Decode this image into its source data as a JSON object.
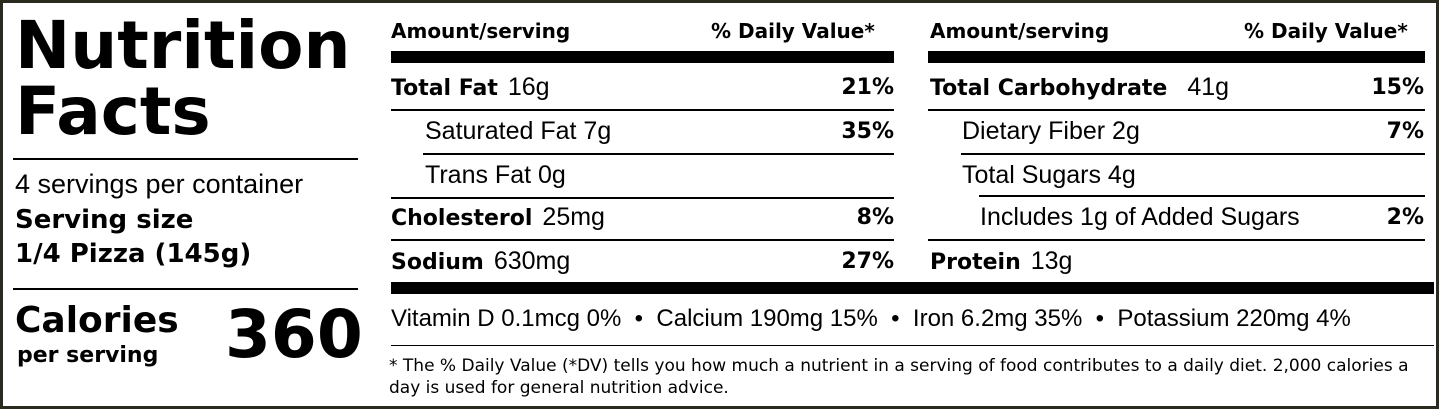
{
  "title_line1": "Nutrition",
  "title_line2": "Facts",
  "servings_per_container": "4 servings per container",
  "serving_size_label": "Serving size",
  "serving_size_value": "1/4 Pizza (145g)",
  "calories_label": "Calories",
  "calories_sub": "per serving",
  "calories_value": "360",
  "left_header": {
    "amount": "Amount/serving",
    "dv": "% Daily Value*"
  },
  "right_header": {
    "amount": "Amount/serving",
    "dv": "% Daily Value*"
  },
  "left_rows": [
    {
      "name": "Total Fat",
      "amount": "16g",
      "dv": "21%"
    },
    {
      "name": "Saturated Fat 7g",
      "dv": "35%"
    },
    {
      "name": "Trans Fat 0g",
      "dv": ""
    },
    {
      "name": "Cholesterol",
      "amount": "25mg",
      "dv": "8%"
    },
    {
      "name": "Sodium",
      "amount": "630mg",
      "dv": "27%"
    }
  ],
  "right_rows": [
    {
      "name": "Total Carbohydrate",
      "amount": "41g",
      "dv": "15%"
    },
    {
      "name": "Dietary Fiber 2g",
      "dv": "7%"
    },
    {
      "name": "Total Sugars 4g",
      "dv": ""
    },
    {
      "name": "Includes 1g of Added Sugars",
      "dv": "2%"
    },
    {
      "name": "Protein",
      "amount": "13g",
      "dv": ""
    }
  ],
  "vitamins": "Vitamin D 0.1mcg 0%  •  Calcium 190mg 15%  •  Iron 6.2mg 35%  •  Potassium 220mg 4%",
  "footnote": "* The % Daily Value (*DV) tells you how much a nutrient in a serving of food contributes to a daily diet. 2,000 calories a day is used for general nutrition advice."
}
